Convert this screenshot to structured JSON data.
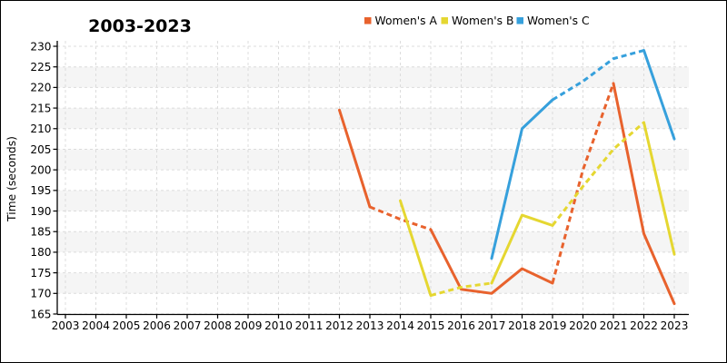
{
  "chart_data": {
    "type": "line",
    "title": "2003-2023",
    "xlabel": "",
    "ylabel": "Time (seconds)",
    "x_ticks": [
      2003,
      2004,
      2005,
      2006,
      2007,
      2008,
      2009,
      2010,
      2011,
      2012,
      2013,
      2014,
      2015,
      2016,
      2017,
      2018,
      2019,
      2020,
      2021,
      2022,
      2023
    ],
    "y_ticks": [
      165,
      170,
      175,
      180,
      185,
      190,
      195,
      200,
      205,
      210,
      215,
      220,
      225,
      230
    ],
    "xlim": [
      2003,
      2023
    ],
    "ylim": [
      165,
      230
    ],
    "grid": true,
    "legend_position": "top-center",
    "background_shaded_bands": [
      [
        170,
        175
      ],
      [
        180,
        185
      ],
      [
        190,
        195
      ],
      [
        200,
        205
      ],
      [
        210,
        215
      ],
      [
        220,
        225
      ]
    ],
    "colors": {
      "band": "#F5F5F5",
      "grid": "#DCDCDC",
      "axis": "#000000",
      "womens_a": "#E8622D",
      "womens_b": "#E5D731",
      "womens_c": "#36A0DC"
    },
    "series": [
      {
        "name": "Women's A",
        "color": "#E8622D",
        "points": [
          [
            2012,
            214.5
          ],
          [
            2013,
            191
          ],
          [
            2014,
            188
          ],
          [
            2015,
            185.5
          ],
          [
            2016,
            171
          ],
          [
            2017,
            170
          ],
          [
            2018,
            176
          ],
          [
            2019,
            172.5
          ],
          [
            2020,
            200
          ],
          [
            2021,
            221
          ],
          [
            2022,
            184.5
          ],
          [
            2023,
            167.5
          ]
        ],
        "segments": [
          {
            "from": 2012,
            "to": 2013,
            "style": "solid"
          },
          {
            "from": 2013,
            "to": 2015,
            "style": "dashed"
          },
          {
            "from": 2015,
            "to": 2019,
            "style": "solid"
          },
          {
            "from": 2019,
            "to": 2021,
            "style": "dashed"
          },
          {
            "from": 2021,
            "to": 2023,
            "style": "solid"
          }
        ]
      },
      {
        "name": "Women's B",
        "color": "#E5D731",
        "points": [
          [
            2014,
            192.5
          ],
          [
            2015,
            169.5
          ],
          [
            2016,
            171.5
          ],
          [
            2017,
            172.5
          ],
          [
            2018,
            189
          ],
          [
            2019,
            186.5
          ],
          [
            2020,
            196
          ],
          [
            2021,
            205
          ],
          [
            2022,
            211.5
          ],
          [
            2023,
            179.5
          ]
        ],
        "segments": [
          {
            "from": 2014,
            "to": 2015,
            "style": "solid"
          },
          {
            "from": 2015,
            "to": 2017,
            "style": "dashed"
          },
          {
            "from": 2017,
            "to": 2019,
            "style": "solid"
          },
          {
            "from": 2019,
            "to": 2022,
            "style": "dashed"
          },
          {
            "from": 2022,
            "to": 2023,
            "style": "solid"
          }
        ]
      },
      {
        "name": "Women's C",
        "color": "#36A0DC",
        "points": [
          [
            2017,
            178.5
          ],
          [
            2018,
            210
          ],
          [
            2019,
            217
          ],
          [
            2020,
            221.5
          ],
          [
            2021,
            227
          ],
          [
            2022,
            229
          ],
          [
            2023,
            207.5
          ]
        ],
        "segments": [
          {
            "from": 2017,
            "to": 2019,
            "style": "solid"
          },
          {
            "from": 2019,
            "to": 2022,
            "style": "dashed"
          },
          {
            "from": 2022,
            "to": 2023,
            "style": "solid"
          }
        ]
      }
    ]
  }
}
